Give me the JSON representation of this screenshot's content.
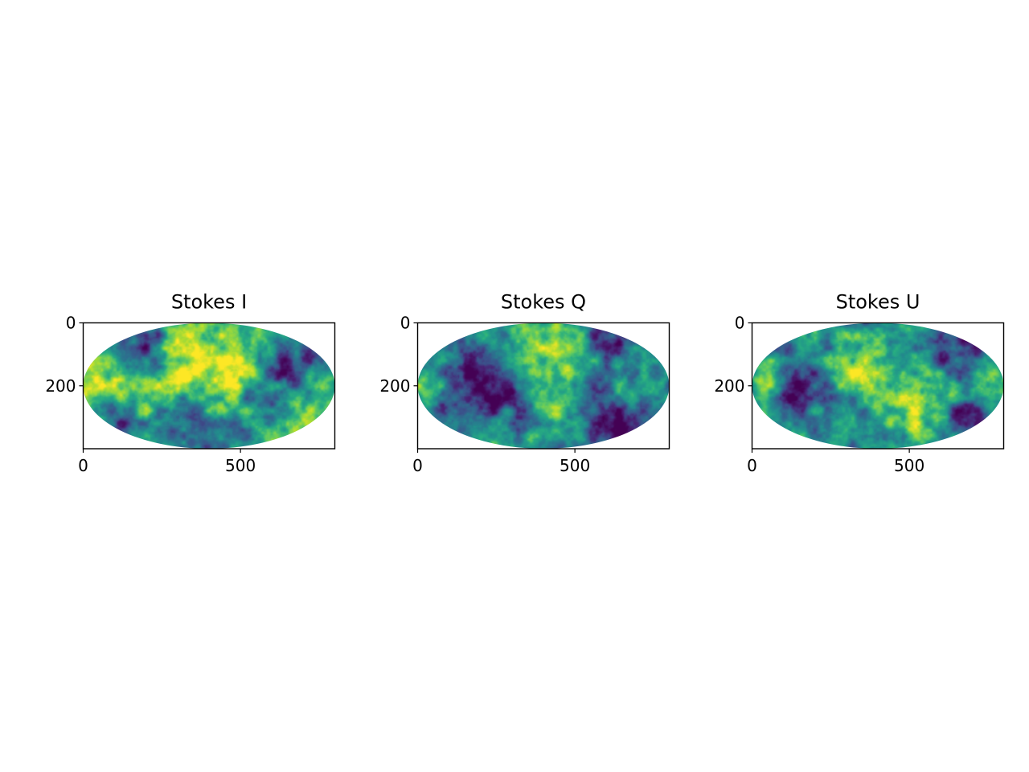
{
  "chart_data": [
    {
      "type": "heatmap",
      "title": "Stokes I",
      "projection": "mollweide",
      "colormap": "viridis",
      "xlim": [
        0,
        800
      ],
      "ylim": [
        400,
        0
      ],
      "x_ticks": [
        0,
        500
      ],
      "y_ticks": [
        0,
        200
      ],
      "x_tick_labels": [
        "0",
        "500"
      ],
      "y_tick_labels": [
        "0",
        "200"
      ],
      "blobs": [
        {
          "x": 180,
          "y": 80,
          "level": 0.0,
          "r": 60
        },
        {
          "x": 660,
          "y": 140,
          "level": 0.05,
          "r": 85
        },
        {
          "x": 340,
          "y": 320,
          "level": 0.0,
          "r": 75
        },
        {
          "x": 560,
          "y": 260,
          "level": 0.35,
          "r": 55
        },
        {
          "x": 60,
          "y": 180,
          "level": 0.95,
          "r": 70
        },
        {
          "x": 400,
          "y": 180,
          "level": 0.95,
          "r": 150
        },
        {
          "x": 740,
          "y": 220,
          "level": 0.9,
          "r": 60
        },
        {
          "x": 120,
          "y": 300,
          "level": 0.15,
          "r": 45
        },
        {
          "x": 480,
          "y": 340,
          "level": 0.2,
          "r": 50
        }
      ],
      "base_level": 0.7
    },
    {
      "type": "heatmap",
      "title": "Stokes Q",
      "projection": "mollweide",
      "colormap": "viridis",
      "xlim": [
        0,
        800
      ],
      "ylim": [
        400,
        0
      ],
      "x_ticks": [
        0,
        500
      ],
      "y_ticks": [
        0,
        200
      ],
      "x_tick_labels": [
        "0",
        "500"
      ],
      "y_tick_labels": [
        "0",
        "200"
      ],
      "blobs": [
        {
          "x": 400,
          "y": 90,
          "level": 0.95,
          "r": 90
        },
        {
          "x": 440,
          "y": 240,
          "level": 0.9,
          "r": 55
        },
        {
          "x": 230,
          "y": 200,
          "level": 0.05,
          "r": 80
        },
        {
          "x": 620,
          "y": 310,
          "level": 0.0,
          "r": 65
        },
        {
          "x": 620,
          "y": 30,
          "level": 0.05,
          "r": 60
        },
        {
          "x": 110,
          "y": 210,
          "level": 0.15,
          "r": 55
        },
        {
          "x": 40,
          "y": 200,
          "level": 0.95,
          "r": 35
        },
        {
          "x": 700,
          "y": 180,
          "level": 0.55,
          "r": 60
        }
      ],
      "base_level": 0.5
    },
    {
      "type": "heatmap",
      "title": "Stokes U",
      "projection": "mollweide",
      "colormap": "viridis",
      "xlim": [
        0,
        800
      ],
      "ylim": [
        400,
        0
      ],
      "x_ticks": [
        0,
        500
      ],
      "y_ticks": [
        0,
        200
      ],
      "x_tick_labels": [
        "0",
        "500"
      ],
      "y_tick_labels": [
        "0",
        "200"
      ],
      "blobs": [
        {
          "x": 520,
          "y": 240,
          "level": 0.95,
          "r": 90
        },
        {
          "x": 330,
          "y": 140,
          "level": 0.9,
          "r": 70
        },
        {
          "x": 150,
          "y": 200,
          "level": 0.05,
          "r": 70
        },
        {
          "x": 640,
          "y": 90,
          "level": 0.05,
          "r": 60
        },
        {
          "x": 700,
          "y": 300,
          "level": 0.1,
          "r": 55
        },
        {
          "x": 280,
          "y": 310,
          "level": 0.45,
          "r": 70
        },
        {
          "x": 60,
          "y": 180,
          "level": 0.85,
          "r": 40
        },
        {
          "x": 760,
          "y": 220,
          "level": 0.8,
          "r": 40
        }
      ],
      "base_level": 0.5
    }
  ]
}
